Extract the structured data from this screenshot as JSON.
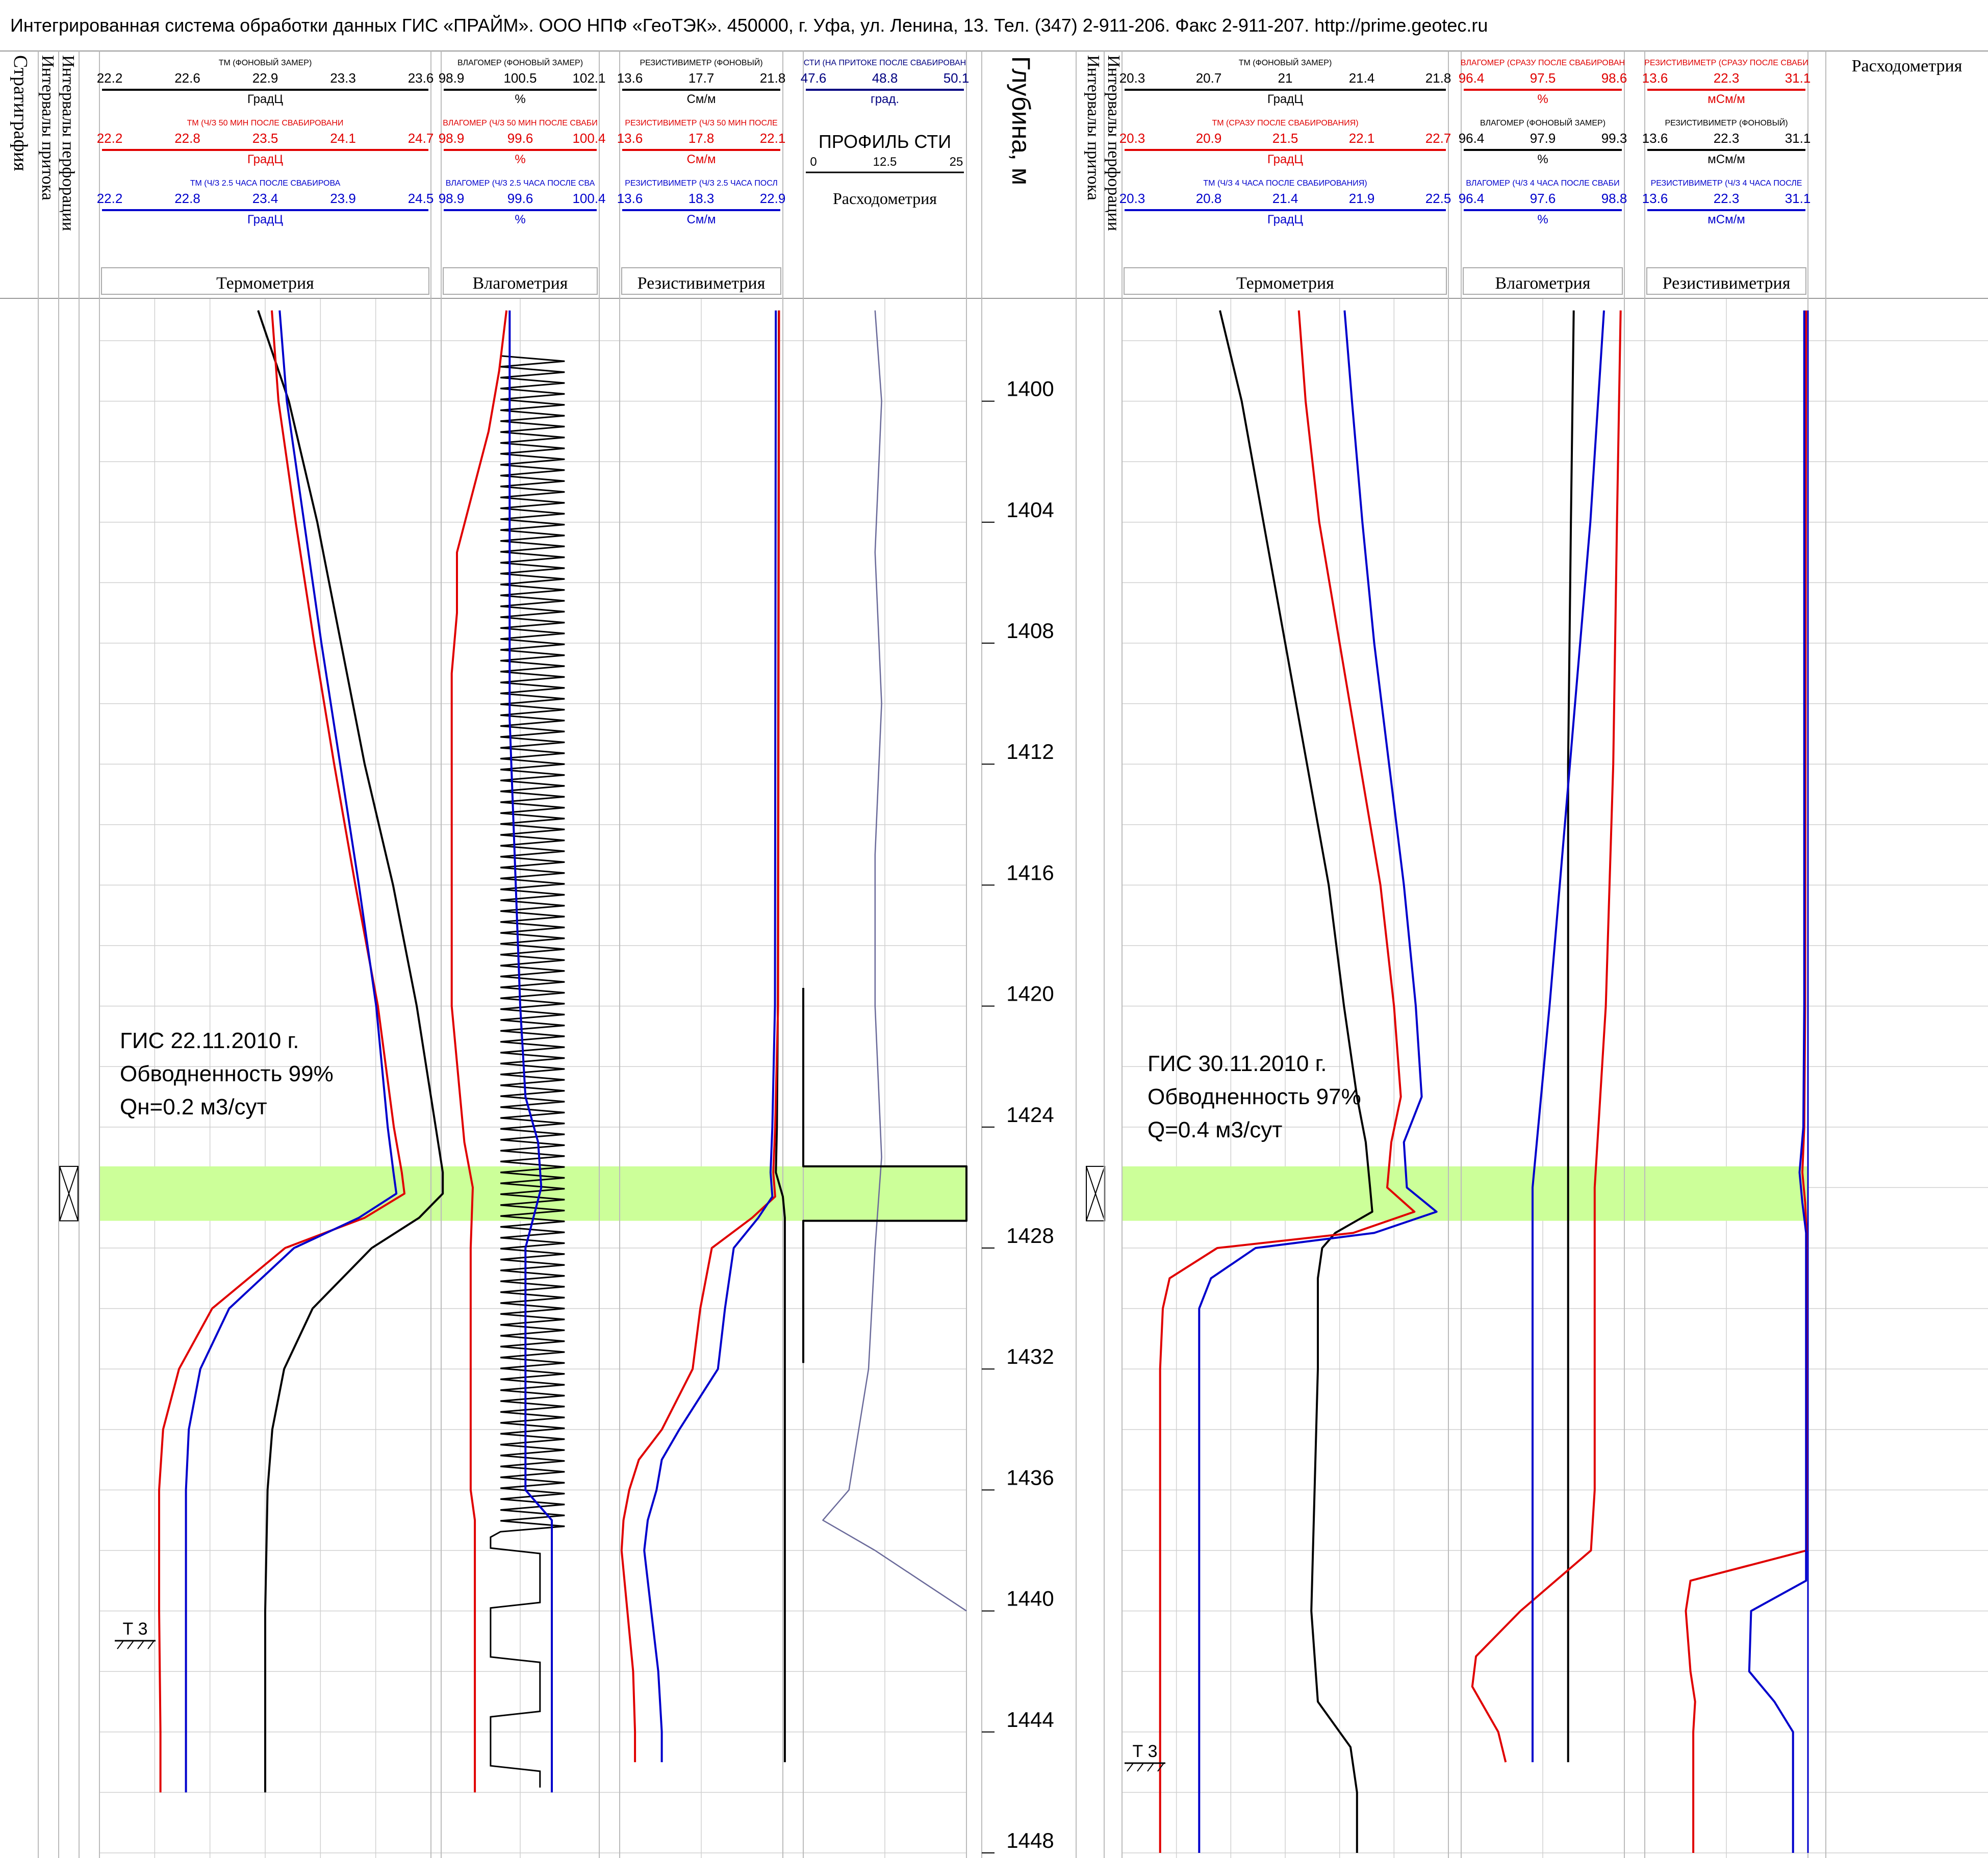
{
  "header": {
    "title": "Интегрированная система обработки данных ГИС «ПРАЙМ». ООО НПФ «ГеоТЭК». 450000, г. Уфа, ул. Ленина, 13. Тел. (347) 2-911-206. Факс 2-911-207. http://prime.geotec.ru"
  },
  "left_panel": {
    "col_stratigraphy": "Стратиграфия",
    "col_inflow": "Интервалы притока",
    "col_perforation": "Интервалы перфорации",
    "thermo_group": "Термометрия",
    "moist_group": "Влагометрия",
    "resist_group": "Резистивиметрия",
    "flow_group": "Расходометрия",
    "thermo_curves": [
      {
        "name": "ТМ (ФОНОВЫЙ ЗАМЕР)",
        "ticks": [
          "22.2",
          "22.6",
          "22.9",
          "23.3",
          "23.6"
        ],
        "unit": "ГрадЦ",
        "color": "#000000"
      },
      {
        "name": "ТМ (Ч/З 50 МИН ПОСЛЕ СВАБИРОВАНИ",
        "ticks": [
          "22.2",
          "22.8",
          "23.5",
          "24.1",
          "24.7"
        ],
        "unit": "ГрадЦ",
        "color": "#e00000"
      },
      {
        "name": "ТМ (Ч/З 2.5 ЧАСА ПОСЛЕ СВАБИРОВА",
        "ticks": [
          "22.2",
          "22.8",
          "23.4",
          "23.9",
          "24.5"
        ],
        "unit": "ГрадЦ",
        "color": "#0000cc"
      }
    ],
    "moist_curves": [
      {
        "name": "ВЛАГОМЕР (ФОНОВЫЙ ЗАМЕР)",
        "ticks": [
          "98.9",
          "100.5",
          "102.1"
        ],
        "unit": "%",
        "color": "#000000"
      },
      {
        "name": "ВЛАГОМЕР (Ч/З 50 МИН ПОСЛЕ СВАБИ",
        "ticks": [
          "98.9",
          "99.6",
          "100.4"
        ],
        "unit": "%",
        "color": "#e00000"
      },
      {
        "name": "ВЛАГОМЕР (Ч/З 2.5 ЧАСА ПОСЛЕ СВА",
        "ticks": [
          "98.9",
          "99.6",
          "100.4"
        ],
        "unit": "%",
        "color": "#0000cc"
      }
    ],
    "resist_curves": [
      {
        "name": "РЕЗИСТИВИМЕТР (ФОНОВЫЙ)",
        "ticks": [
          "13.6",
          "17.7",
          "21.8"
        ],
        "unit": "См/м",
        "color": "#000000"
      },
      {
        "name": "РЕЗИСТИВИМЕТР (Ч/З 50 МИН ПОСЛЕ",
        "ticks": [
          "13.6",
          "17.8",
          "22.1"
        ],
        "unit": "См/м",
        "color": "#e00000"
      },
      {
        "name": "РЕЗИСТИВИМЕТР (Ч/З 2.5 ЧАСА ПОСЛ",
        "ticks": [
          "13.6",
          "18.3",
          "22.9"
        ],
        "unit": "См/м",
        "color": "#0000cc"
      }
    ],
    "sti_curve": {
      "name": "СТИ (НА ПРИТОКЕ ПОСЛЕ СВАБИРОВАН",
      "ticks": [
        "47.6",
        "48.8",
        "50.1"
      ],
      "unit": "град.",
      "color": "#000080"
    },
    "sti_profile": {
      "name": "ПРОФИЛЬ СТИ",
      "ticks": [
        "0",
        "12.5",
        "25"
      ]
    },
    "annotation": [
      "ГИС 22.11.2010 г.",
      "Обводненность 99%",
      "Qн=0.2 м3/сут"
    ],
    "formation": "Т 3"
  },
  "depth": {
    "title": "Глубина, м",
    "ticks": [
      "1400",
      "1404",
      "1408",
      "1412",
      "1416",
      "1420",
      "1424",
      "1428",
      "1432",
      "1436",
      "1440",
      "1444",
      "1448"
    ]
  },
  "right_panel": {
    "col_inflow": "Интервалы притока",
    "col_perforation": "Интервалы перфорации",
    "thermo_group": "Термометрия",
    "moist_group": "Влагометрия",
    "resist_group": "Резистивиметрия",
    "flow_group": "Расходометрия",
    "thermo_curves": [
      {
        "name": "ТМ (ФОНОВЫЙ ЗАМЕР)",
        "ticks": [
          "20.3",
          "20.7",
          "21",
          "21.4",
          "21.8"
        ],
        "unit": "ГрадЦ",
        "color": "#000000"
      },
      {
        "name": "ТМ (СРАЗУ ПОСЛЕ СВАБИРОВАНИЯ)",
        "ticks": [
          "20.3",
          "20.9",
          "21.5",
          "22.1",
          "22.7"
        ],
        "unit": "ГрадЦ",
        "color": "#e00000"
      },
      {
        "name": "ТМ (Ч/З 4 ЧАСА ПОСЛЕ СВАБИРОВАНИЯ)",
        "ticks": [
          "20.3",
          "20.8",
          "21.4",
          "21.9",
          "22.5"
        ],
        "unit": "ГрадЦ",
        "color": "#0000cc"
      }
    ],
    "moist_curves": [
      {
        "name": "ВЛАГОМЕР (СРАЗУ ПОСЛЕ СВАБИРОВАН",
        "ticks": [
          "96.4",
          "97.5",
          "98.6"
        ],
        "unit": "%",
        "color": "#e00000"
      },
      {
        "name": "ВЛАГОМЕР (ФОНОВЫЙ ЗАМЕР)",
        "ticks": [
          "96.4",
          "97.9",
          "99.3"
        ],
        "unit": "%",
        "color": "#000000"
      },
      {
        "name": "ВЛАГОМЕР (Ч/З 4 ЧАСА ПОСЛЕ СВАБИ",
        "ticks": [
          "96.4",
          "97.6",
          "98.8"
        ],
        "unit": "%",
        "color": "#0000cc"
      }
    ],
    "resist_curves": [
      {
        "name": "РЕЗИСТИВИМЕТР (СРАЗУ ПОСЛЕ СВАБИ",
        "ticks": [
          "13.6",
          "22.3",
          "31.1"
        ],
        "unit": "мСм/м",
        "color": "#e00000"
      },
      {
        "name": "РЕЗИСТИВИМЕТР (ФОНОВЫЙ)",
        "ticks": [
          "13.6",
          "22.3",
          "31.1"
        ],
        "unit": "мСм/м",
        "color": "#000000"
      },
      {
        "name": "РЕЗИСТИВИМЕТР (Ч/З 4 ЧАСА ПОСЛЕ",
        "ticks": [
          "13.6",
          "22.3",
          "31.1"
        ],
        "unit": "мСм/м",
        "color": "#0000cc"
      }
    ],
    "annotation": [
      "ГИС 30.11.2010 г.",
      "Обводненность 97%",
      "Q=0.4 м3/сут"
    ],
    "formation": "Т 3"
  },
  "chart_data": {
    "type": "line",
    "depth_unit": "м",
    "depth_range": [
      1396.6,
      1448
    ],
    "inflow_interval": [
      1425.3,
      1427.1
    ],
    "colors": {
      "background": "#000000",
      "after_short": "#e00000",
      "after_long": "#0000cc",
      "sti": "#000080",
      "inflow": "#ccff99",
      "grid": "#d0d0d0"
    },
    "left": {
      "thermo": {
        "depth": [
          1397,
          1400,
          1404,
          1408,
          1412,
          1416,
          1420,
          1424,
          1425.5,
          1426.2,
          1427,
          1428,
          1430,
          1432,
          1434,
          1436,
          1440,
          1444,
          1446
        ],
        "bg": [
          22.87,
          23.0,
          23.12,
          23.22,
          23.32,
          23.44,
          23.54,
          23.62,
          23.65,
          23.65,
          23.55,
          23.35,
          23.1,
          22.98,
          22.93,
          22.91,
          22.9,
          22.9,
          22.9
        ],
        "t50": [
          23.5,
          23.55,
          23.68,
          23.82,
          23.97,
          24.13,
          24.3,
          24.42,
          24.48,
          24.5,
          24.2,
          23.6,
          23.05,
          22.8,
          22.68,
          22.65,
          22.65,
          22.66,
          22.66
        ],
        "t25": [
          23.45,
          23.5,
          23.62,
          23.74,
          23.87,
          24.0,
          24.12,
          24.2,
          24.24,
          24.26,
          24.0,
          23.55,
          23.1,
          22.9,
          22.82,
          22.8,
          22.8,
          22.8,
          22.8
        ]
      },
      "moist": {
        "depth": [
          1397,
          1399,
          1401,
          1403,
          1405,
          1407,
          1409,
          1410.5,
          1420,
          1423,
          1424.5,
          1426,
          1428,
          1430,
          1432,
          1436,
          1437,
          1444,
          1446
        ],
        "t50": [
          99.52,
          99.45,
          99.35,
          99.2,
          99.05,
          99.05,
          99.0,
          99.0,
          99.0,
          99.08,
          99.12,
          99.2,
          99.18,
          99.18,
          99.18,
          99.18,
          99.22,
          99.22,
          99.22
        ],
        "t25": [
          99.55,
          99.55,
          99.55,
          99.55,
          99.55,
          99.55,
          99.55,
          99.55,
          99.65,
          99.7,
          99.82,
          99.85,
          99.7,
          99.7,
          99.7,
          99.7,
          99.95,
          99.95,
          99.95
        ]
      },
      "resist": {
        "depth": [
          1397,
          1420,
          1424,
          1425.5,
          1426.3,
          1427,
          1428,
          1430,
          1432,
          1434,
          1435,
          1436,
          1437,
          1438,
          1440,
          1442,
          1444,
          1445
        ],
        "bg": [
          21.6,
          21.55,
          21.5,
          21.45,
          21.8,
          21.9,
          21.9,
          21.9,
          21.9,
          21.9,
          21.9,
          21.9,
          21.9,
          21.9,
          21.9,
          21.9,
          21.9,
          21.9
        ],
        "t50": [
          21.9,
          21.85,
          21.7,
          21.6,
          21.7,
          20.5,
          18.4,
          17.8,
          17.4,
          15.8,
          14.6,
          14.1,
          13.8,
          13.7,
          14.0,
          14.3,
          14.4,
          14.4
        ],
        "t25": [
          22.5,
          22.45,
          22.3,
          22.2,
          22.3,
          21.5,
          20.1,
          19.6,
          19.2,
          17.0,
          16.0,
          15.7,
          15.2,
          15.0,
          15.4,
          15.8,
          16.0,
          16.0
        ]
      },
      "sti": {
        "depth": [
          1397,
          1400,
          1405,
          1410,
          1415,
          1420,
          1425,
          1428,
          1432,
          1436,
          1437,
          1438,
          1439,
          1440
        ],
        "values": [
          48.7,
          48.8,
          48.7,
          48.8,
          48.7,
          48.7,
          48.8,
          48.7,
          48.6,
          48.3,
          47.9,
          48.7,
          49.4,
          50.1
        ]
      },
      "sti_profile": {
        "depth": [
          1419.4,
          1425.3,
          1425.3,
          1427.1,
          1427.1,
          1431.8
        ],
        "values": [
          0,
          0,
          25,
          25,
          0,
          0
        ]
      }
    },
    "right": {
      "thermo": {
        "depth": [
          1397,
          1400,
          1404,
          1408,
          1412,
          1416,
          1420,
          1423,
          1424.5,
          1426,
          1426.8,
          1427.5,
          1428,
          1429,
          1430,
          1432,
          1440,
          1443,
          1444.5,
          1446,
          1448
        ],
        "bg": [
          20.75,
          20.85,
          20.95,
          21.05,
          21.15,
          21.25,
          21.32,
          21.38,
          21.42,
          21.44,
          21.45,
          21.28,
          21.22,
          21.2,
          21.2,
          21.2,
          21.17,
          21.2,
          21.35,
          21.38,
          21.38
        ],
        "fast": [
          21.6,
          21.65,
          21.75,
          21.9,
          22.05,
          22.2,
          22.3,
          22.35,
          22.28,
          22.25,
          22.45,
          22.0,
          21.0,
          20.65,
          20.6,
          20.58,
          20.58,
          20.58,
          20.58,
          20.58,
          20.58
        ],
        "t4h": [
          21.8,
          21.85,
          21.92,
          22.0,
          22.1,
          22.2,
          22.28,
          22.32,
          22.2,
          22.22,
          22.42,
          22.0,
          21.2,
          20.9,
          20.82,
          20.82,
          20.82,
          20.82,
          20.82,
          20.82,
          20.82
        ]
      },
      "moist": {
        "depth": [
          1397,
          1404,
          1412,
          1420,
          1426,
          1430,
          1436,
          1438,
          1440,
          1441.5,
          1442.5,
          1444,
          1445
        ],
        "bg": [
          98.4,
          98.35,
          98.3,
          98.3,
          98.3,
          98.3,
          98.3,
          98.3,
          98.3,
          98.3,
          98.3,
          98.3,
          98.3
        ],
        "fast": [
          98.55,
          98.5,
          98.45,
          98.35,
          98.2,
          98.2,
          98.2,
          98.15,
          97.2,
          96.6,
          96.55,
          96.9,
          97.0
        ],
        "t4h": [
          98.5,
          98.3,
          98.0,
          97.7,
          97.45,
          97.45,
          97.45,
          97.45,
          97.45,
          97.45,
          97.45,
          97.45,
          97.45
        ]
      },
      "resist": {
        "depth": [
          1397,
          1420,
          1424,
          1425.5,
          1426.5,
          1427.5,
          1438,
          1439,
          1440,
          1442,
          1443,
          1444,
          1446,
          1448
        ],
        "bg": [
          31.1,
          31.1,
          31.1,
          31.1,
          31.1,
          31.1,
          31.1,
          31.1,
          31.1,
          31.1,
          31.1,
          31.1,
          31.1,
          31.1
        ],
        "fast": [
          30.9,
          30.8,
          30.7,
          30.5,
          30.8,
          30.95,
          30.95,
          18.5,
          18.0,
          18.5,
          19.0,
          18.8,
          18.8,
          18.8
        ],
        "t4h": [
          30.7,
          30.7,
          30.6,
          30.2,
          30.5,
          30.9,
          30.9,
          30.9,
          25.0,
          24.8,
          27.5,
          29.5,
          29.5,
          29.5
        ]
      }
    }
  }
}
